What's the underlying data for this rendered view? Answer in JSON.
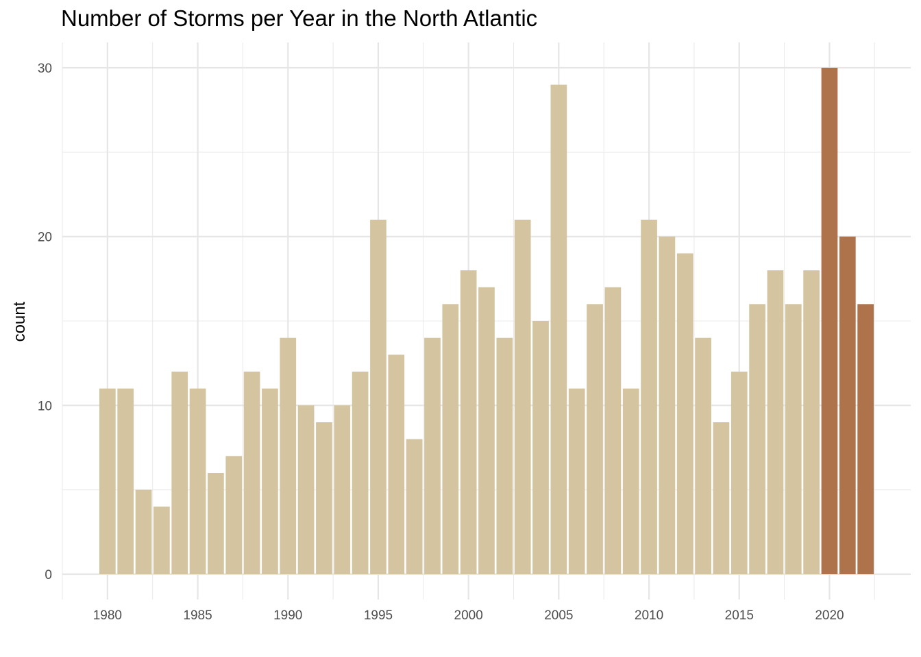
{
  "chart_data": {
    "type": "bar",
    "title": "Number of Storms per Year in the North Atlantic",
    "xlabel": "",
    "ylabel": "count",
    "x": [
      1980,
      1981,
      1982,
      1983,
      1984,
      1985,
      1986,
      1987,
      1988,
      1989,
      1990,
      1991,
      1992,
      1993,
      1994,
      1995,
      1996,
      1997,
      1998,
      1999,
      2000,
      2001,
      2002,
      2003,
      2004,
      2005,
      2006,
      2007,
      2008,
      2009,
      2010,
      2011,
      2012,
      2013,
      2014,
      2015,
      2016,
      2017,
      2018,
      2019,
      2020,
      2021,
      2022
    ],
    "values": [
      11,
      11,
      5,
      4,
      12,
      11,
      6,
      7,
      12,
      11,
      14,
      10,
      9,
      10,
      12,
      21,
      13,
      8,
      14,
      16,
      18,
      17,
      14,
      21,
      15,
      29,
      11,
      16,
      17,
      11,
      21,
      20,
      19,
      14,
      9,
      12,
      16,
      18,
      16,
      18,
      30,
      20,
      16
    ],
    "highlight_years": [
      2020,
      2021,
      2022
    ],
    "colors": {
      "default": "#d4c5a0",
      "highlight": "#ae734b"
    },
    "xlim": [
      1977.5,
      2024.5
    ],
    "ylim": [
      -1.5,
      31.5
    ],
    "x_ticks": [
      1980,
      1985,
      1990,
      1995,
      2000,
      2005,
      2010,
      2015,
      2020
    ],
    "y_ticks": [
      0,
      10,
      20,
      30
    ],
    "grid": true,
    "legend": "none"
  }
}
